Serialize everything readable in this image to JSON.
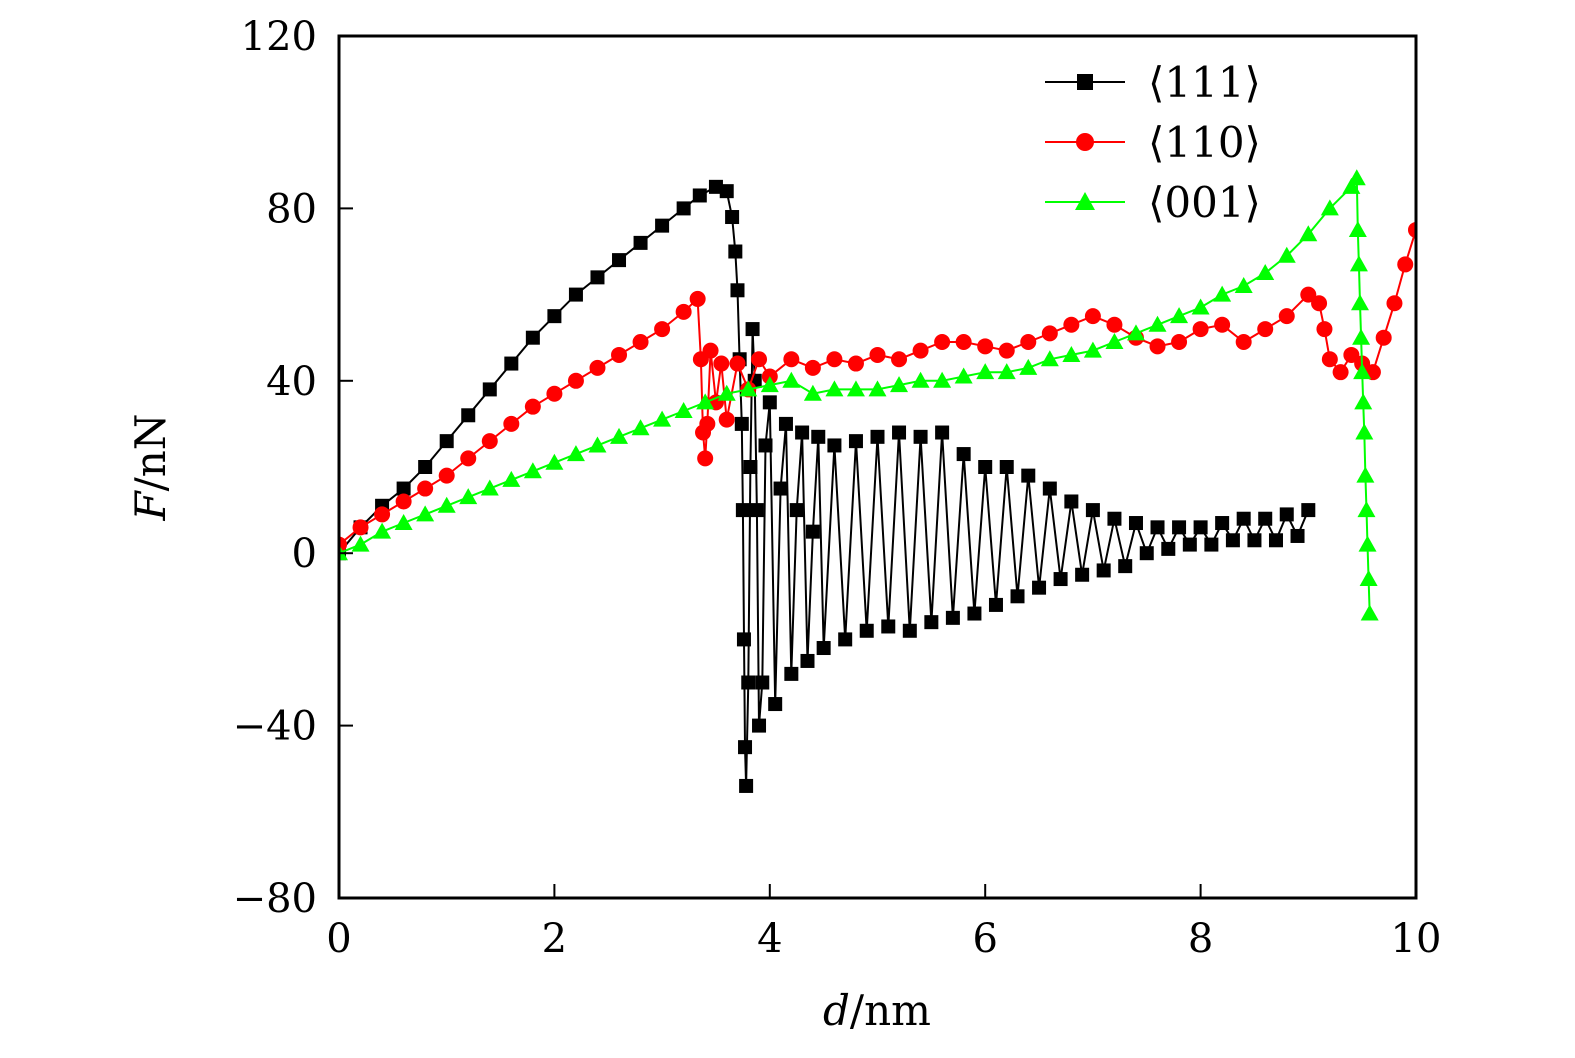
{
  "chart_data": {
    "type": "scatter",
    "title": "",
    "xlabel_var": "d",
    "xlabel_unit": "/nm",
    "ylabel_var": "F",
    "ylabel_unit": "/nN",
    "xlim": [
      0,
      10
    ],
    "ylim": [
      -80,
      120
    ],
    "x_ticks": [
      0,
      2,
      4,
      6,
      8,
      10
    ],
    "x_tick_labels": [
      "0",
      "2",
      "4",
      "6",
      "8",
      "10"
    ],
    "y_ticks": [
      -80,
      -40,
      0,
      40,
      80,
      120
    ],
    "y_tick_labels": [
      "−80",
      "−40",
      "0",
      "40",
      "80",
      "120"
    ],
    "grid": false,
    "legend_position": "top-right",
    "series": [
      {
        "name": "⟨111⟩",
        "color": "#000000",
        "marker": "square",
        "points": [
          [
            0,
            0
          ],
          [
            0.2,
            6
          ],
          [
            0.4,
            11
          ],
          [
            0.6,
            15
          ],
          [
            0.8,
            20
          ],
          [
            1.0,
            26
          ],
          [
            1.2,
            32
          ],
          [
            1.4,
            38
          ],
          [
            1.6,
            44
          ],
          [
            1.8,
            50
          ],
          [
            2.0,
            55
          ],
          [
            2.2,
            60
          ],
          [
            2.4,
            64
          ],
          [
            2.6,
            68
          ],
          [
            2.8,
            72
          ],
          [
            3.0,
            76
          ],
          [
            3.2,
            80
          ],
          [
            3.35,
            83
          ],
          [
            3.5,
            85
          ],
          [
            3.6,
            84
          ],
          [
            3.65,
            78
          ],
          [
            3.68,
            70
          ],
          [
            3.7,
            61
          ],
          [
            3.72,
            45
          ],
          [
            3.74,
            30
          ],
          [
            3.75,
            10
          ],
          [
            3.76,
            -20
          ],
          [
            3.77,
            -45
          ],
          [
            3.78,
            -54
          ],
          [
            3.8,
            -30
          ],
          [
            3.82,
            20
          ],
          [
            3.84,
            52
          ],
          [
            3.86,
            40
          ],
          [
            3.88,
            10
          ],
          [
            3.9,
            -40
          ],
          [
            3.93,
            -30
          ],
          [
            3.96,
            25
          ],
          [
            4.0,
            35
          ],
          [
            4.05,
            -35
          ],
          [
            4.1,
            15
          ],
          [
            4.15,
            30
          ],
          [
            4.2,
            -28
          ],
          [
            4.25,
            10
          ],
          [
            4.3,
            28
          ],
          [
            4.35,
            -25
          ],
          [
            4.4,
            5
          ],
          [
            4.45,
            27
          ],
          [
            4.5,
            -22
          ],
          [
            4.6,
            25
          ],
          [
            4.7,
            -20
          ],
          [
            4.8,
            26
          ],
          [
            4.9,
            -18
          ],
          [
            5.0,
            27
          ],
          [
            5.1,
            -17
          ],
          [
            5.2,
            28
          ],
          [
            5.3,
            -18
          ],
          [
            5.4,
            27
          ],
          [
            5.5,
            -16
          ],
          [
            5.6,
            28
          ],
          [
            5.7,
            -15
          ],
          [
            5.8,
            23
          ],
          [
            5.9,
            -14
          ],
          [
            6.0,
            20
          ],
          [
            6.1,
            -12
          ],
          [
            6.2,
            20
          ],
          [
            6.3,
            -10
          ],
          [
            6.4,
            18
          ],
          [
            6.5,
            -8
          ],
          [
            6.6,
            15
          ],
          [
            6.7,
            -6
          ],
          [
            6.8,
            12
          ],
          [
            6.9,
            -5
          ],
          [
            7.0,
            10
          ],
          [
            7.1,
            -4
          ],
          [
            7.2,
            8
          ],
          [
            7.3,
            -3
          ],
          [
            7.4,
            7
          ],
          [
            7.5,
            0
          ],
          [
            7.6,
            6
          ],
          [
            7.7,
            1
          ],
          [
            7.8,
            6
          ],
          [
            7.9,
            2
          ],
          [
            8.0,
            6
          ],
          [
            8.1,
            2
          ],
          [
            8.2,
            7
          ],
          [
            8.3,
            3
          ],
          [
            8.4,
            8
          ],
          [
            8.5,
            3
          ],
          [
            8.6,
            8
          ],
          [
            8.7,
            3
          ],
          [
            8.8,
            9
          ],
          [
            8.9,
            4
          ],
          [
            9.0,
            10
          ]
        ]
      },
      {
        "name": "⟨110⟩",
        "color": "#ff0000",
        "marker": "circle",
        "points": [
          [
            0,
            2
          ],
          [
            0.2,
            6
          ],
          [
            0.4,
            9
          ],
          [
            0.6,
            12
          ],
          [
            0.8,
            15
          ],
          [
            1.0,
            18
          ],
          [
            1.2,
            22
          ],
          [
            1.4,
            26
          ],
          [
            1.6,
            30
          ],
          [
            1.8,
            34
          ],
          [
            2.0,
            37
          ],
          [
            2.2,
            40
          ],
          [
            2.4,
            43
          ],
          [
            2.6,
            46
          ],
          [
            2.8,
            49
          ],
          [
            3.0,
            52
          ],
          [
            3.2,
            56
          ],
          [
            3.33,
            59
          ],
          [
            3.36,
            45
          ],
          [
            3.38,
            28
          ],
          [
            3.4,
            22
          ],
          [
            3.42,
            30
          ],
          [
            3.45,
            47
          ],
          [
            3.5,
            35
          ],
          [
            3.55,
            44
          ],
          [
            3.6,
            31
          ],
          [
            3.7,
            44
          ],
          [
            3.8,
            38
          ],
          [
            3.9,
            45
          ],
          [
            4.0,
            41
          ],
          [
            4.2,
            45
          ],
          [
            4.4,
            43
          ],
          [
            4.6,
            45
          ],
          [
            4.8,
            44
          ],
          [
            5.0,
            46
          ],
          [
            5.2,
            45
          ],
          [
            5.4,
            47
          ],
          [
            5.6,
            49
          ],
          [
            5.8,
            49
          ],
          [
            6.0,
            48
          ],
          [
            6.2,
            47
          ],
          [
            6.4,
            49
          ],
          [
            6.6,
            51
          ],
          [
            6.8,
            53
          ],
          [
            7.0,
            55
          ],
          [
            7.2,
            53
          ],
          [
            7.4,
            50
          ],
          [
            7.6,
            48
          ],
          [
            7.8,
            49
          ],
          [
            8.0,
            52
          ],
          [
            8.2,
            53
          ],
          [
            8.4,
            49
          ],
          [
            8.6,
            52
          ],
          [
            8.8,
            55
          ],
          [
            9.0,
            60
          ],
          [
            9.1,
            58
          ],
          [
            9.15,
            52
          ],
          [
            9.2,
            45
          ],
          [
            9.3,
            42
          ],
          [
            9.4,
            46
          ],
          [
            9.5,
            44
          ],
          [
            9.6,
            42
          ],
          [
            9.7,
            50
          ],
          [
            9.8,
            58
          ],
          [
            9.9,
            67
          ],
          [
            10.0,
            75
          ]
        ]
      },
      {
        "name": "⟨001⟩",
        "color": "#00ff00",
        "marker": "triangle",
        "points": [
          [
            0,
            0
          ],
          [
            0.2,
            2
          ],
          [
            0.4,
            5
          ],
          [
            0.6,
            7
          ],
          [
            0.8,
            9
          ],
          [
            1.0,
            11
          ],
          [
            1.2,
            13
          ],
          [
            1.4,
            15
          ],
          [
            1.6,
            17
          ],
          [
            1.8,
            19
          ],
          [
            2.0,
            21
          ],
          [
            2.2,
            23
          ],
          [
            2.4,
            25
          ],
          [
            2.6,
            27
          ],
          [
            2.8,
            29
          ],
          [
            3.0,
            31
          ],
          [
            3.2,
            33
          ],
          [
            3.4,
            35
          ],
          [
            3.6,
            37
          ],
          [
            3.8,
            38
          ],
          [
            4.0,
            39
          ],
          [
            4.2,
            40
          ],
          [
            4.4,
            37
          ],
          [
            4.6,
            38
          ],
          [
            4.8,
            38
          ],
          [
            5.0,
            38
          ],
          [
            5.2,
            39
          ],
          [
            5.4,
            40
          ],
          [
            5.6,
            40
          ],
          [
            5.8,
            41
          ],
          [
            6.0,
            42
          ],
          [
            6.2,
            42
          ],
          [
            6.4,
            43
          ],
          [
            6.6,
            45
          ],
          [
            6.8,
            46
          ],
          [
            7.0,
            47
          ],
          [
            7.2,
            49
          ],
          [
            7.4,
            51
          ],
          [
            7.6,
            53
          ],
          [
            7.8,
            55
          ],
          [
            8.0,
            57
          ],
          [
            8.2,
            60
          ],
          [
            8.4,
            62
          ],
          [
            8.6,
            65
          ],
          [
            8.8,
            69
          ],
          [
            9.0,
            74
          ],
          [
            9.2,
            80
          ],
          [
            9.4,
            85
          ],
          [
            9.45,
            87
          ],
          [
            9.46,
            75
          ],
          [
            9.47,
            67
          ],
          [
            9.48,
            58
          ],
          [
            9.49,
            50
          ],
          [
            9.5,
            42
          ],
          [
            9.51,
            35
          ],
          [
            9.52,
            28
          ],
          [
            9.53,
            18
          ],
          [
            9.54,
            10
          ],
          [
            9.55,
            2
          ],
          [
            9.56,
            -6
          ],
          [
            9.57,
            -14
          ]
        ]
      }
    ]
  }
}
